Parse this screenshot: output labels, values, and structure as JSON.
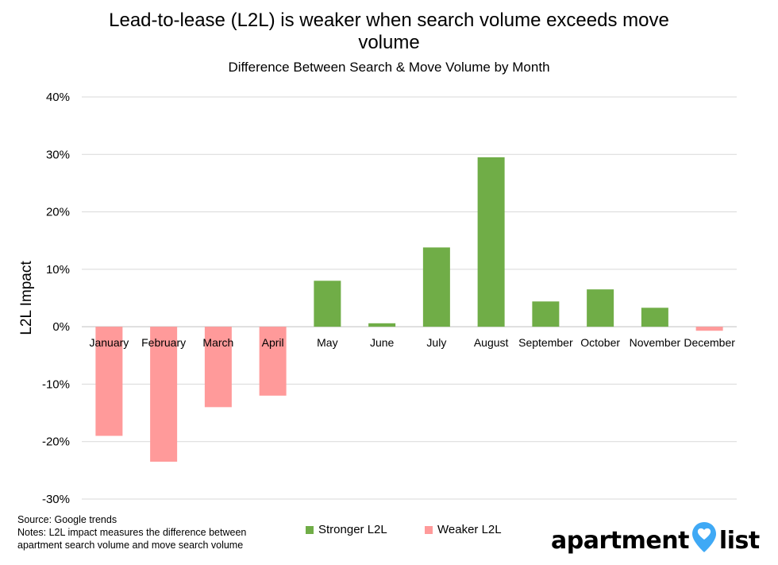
{
  "header": {
    "title_line1": "Lead-to-lease (L2L) is weaker when search volume exceeds move",
    "title_line2": "volume",
    "subtitle": "Difference Between Search & Move Volume by Month"
  },
  "chart_data": {
    "type": "bar",
    "title": "Lead-to-lease (L2L) is weaker when search volume exceeds move volume",
    "subtitle": "Difference Between Search & Move Volume by Month",
    "xlabel": "",
    "ylabel": "L2L Impact",
    "ylim": [
      -30,
      40
    ],
    "y_ticks": [
      "40%",
      "30%",
      "20%",
      "10%",
      "0%",
      "-10%",
      "-20%",
      "-30%"
    ],
    "grid": true,
    "legend_position": "bottom",
    "categories": [
      "January",
      "February",
      "March",
      "April",
      "May",
      "June",
      "July",
      "August",
      "September",
      "October",
      "November",
      "December"
    ],
    "values": [
      -19,
      -23.5,
      -14,
      -12,
      8,
      0.6,
      13.8,
      29.5,
      4.4,
      6.5,
      3.3,
      -0.7
    ],
    "series": [
      {
        "name": "Stronger L2L",
        "color": "#70ad47"
      },
      {
        "name": "Weaker L2L",
        "color": "#ff9a9a"
      }
    ]
  },
  "notes": {
    "source": "Source: Google trends",
    "note_line1": "Notes: L2L impact measures the difference between",
    "note_line2": "apartment search volume and move search volume"
  },
  "legend": {
    "stronger": "Stronger L2L",
    "weaker": "Weaker L2L"
  },
  "logo": {
    "left_text": "apartment",
    "right_text": "list",
    "pin_color": "#3fa9f5"
  }
}
